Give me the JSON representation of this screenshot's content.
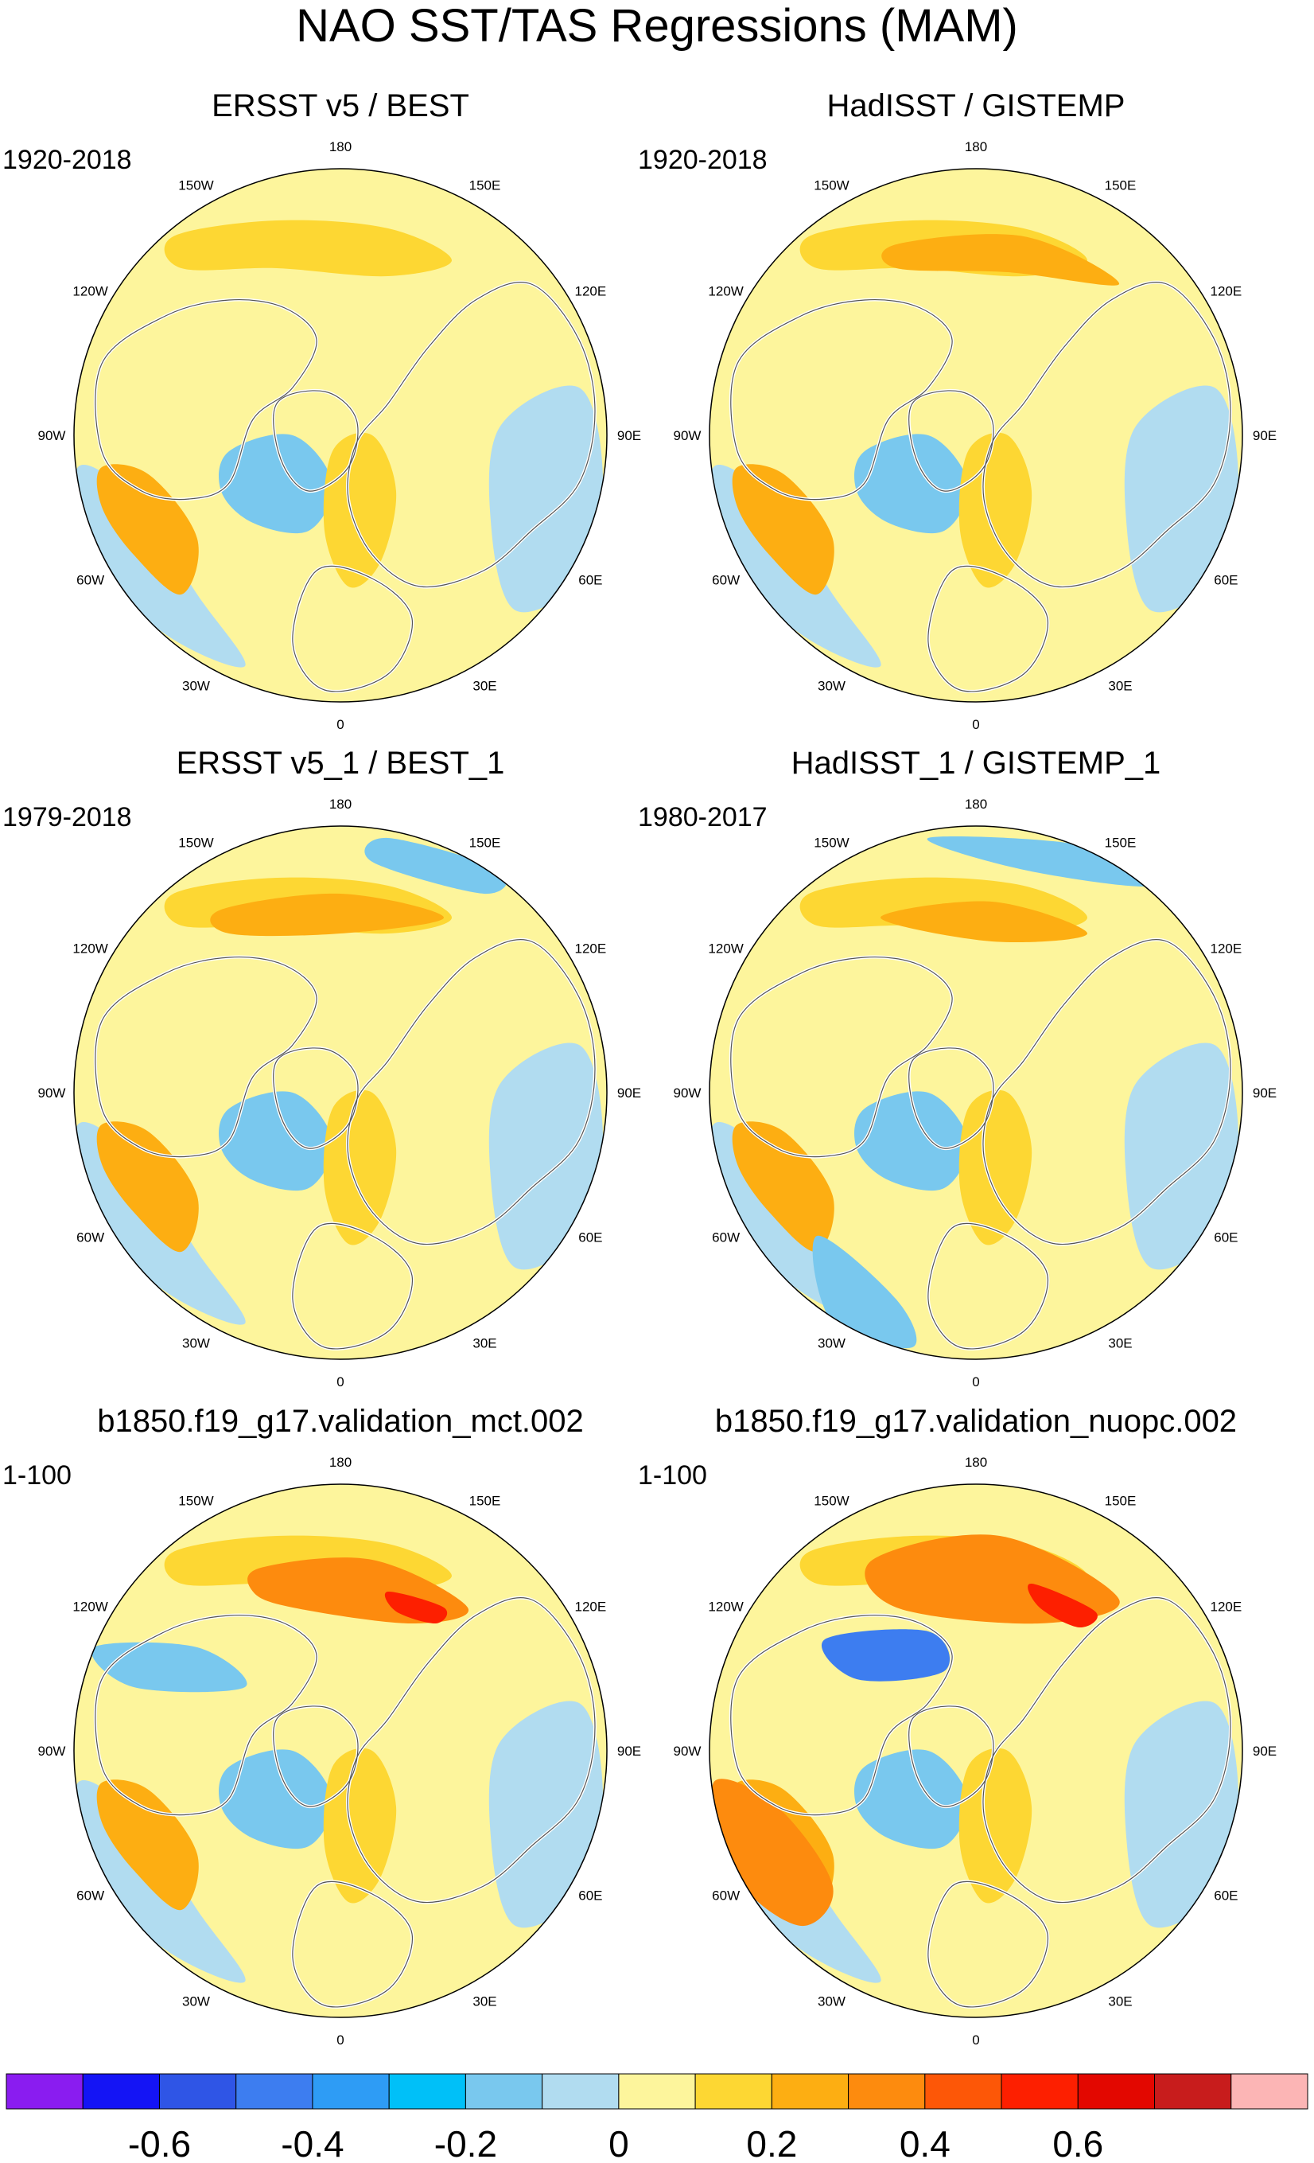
{
  "figure": {
    "title": "NAO SST/TAS Regressions (MAM)",
    "projection": "North polar stereographic",
    "longitude_labels": [
      "180",
      "150E",
      "120E",
      "90E",
      "60E",
      "30E",
      "0",
      "30W",
      "60W",
      "90W",
      "120W",
      "150W"
    ],
    "panels": [
      {
        "title": "ERSST v5 / BEST",
        "period": "1920-2018"
      },
      {
        "title": "HadISST / GISTEMP",
        "period": "1920-2018"
      },
      {
        "title": "ERSST v5_1 / BEST_1",
        "period": "1979-2018"
      },
      {
        "title": "HadISST_1 / GISTEMP_1",
        "period": "1980-2017"
      },
      {
        "title": "b1850.f19_g17.validation_mct.002",
        "period": "1-100"
      },
      {
        "title": "b1850.f19_g17.validation_nuopc.002",
        "period": "1-100"
      }
    ]
  },
  "colorbar": {
    "colors": [
      "#8a1cf0",
      "#1414f5",
      "#2f55e6",
      "#3d7df0",
      "#2e9cf5",
      "#00c0f8",
      "#79c8ee",
      "#b1dcf0",
      "#fdf59c",
      "#fdd733",
      "#fdae12",
      "#fd8b0e",
      "#fd5707",
      "#fd1f00",
      "#e30700",
      "#c81c1c",
      "#fcb5b5"
    ],
    "tick_labels": [
      "-0.6",
      "-0.4",
      "-0.2",
      "0",
      "0.2",
      "0.4",
      "0.6"
    ]
  },
  "legend_colors": {
    "light_blue": "#b1dcf0",
    "sky": "#79c8ee",
    "blue_mid": "#3d7df0",
    "blue_deep": "#2f55e6",
    "light_yellow": "#fdf59c",
    "yellow": "#fdd733",
    "orange": "#fdae12",
    "orange_dark": "#fd8b0e",
    "red": "#fd1f00"
  }
}
